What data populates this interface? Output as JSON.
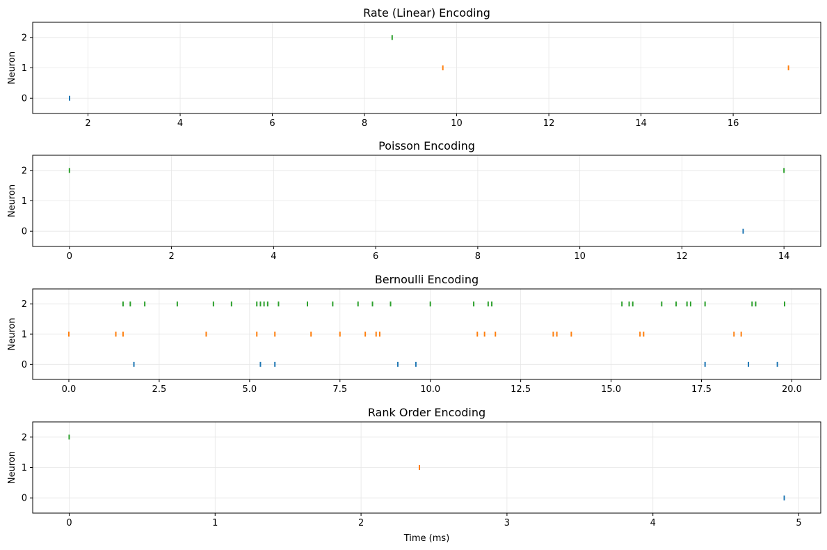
{
  "colors": {
    "neuron_0": "#1f77b4",
    "neuron_1": "#ff7f0e",
    "neuron_2": "#2ca02c",
    "grid": "#e6e6e6",
    "axes": "#000000"
  },
  "chart_data": [
    {
      "type": "scatter",
      "marker": "vertical-tick",
      "title": "Rate (Linear) Encoding",
      "xlabel": "",
      "ylabel": "Neuron",
      "xlim": [
        0.8,
        17.9
      ],
      "ylim": [
        -0.5,
        2.5
      ],
      "xticks": [
        2,
        4,
        6,
        8,
        10,
        12,
        14,
        16
      ],
      "xticklabels": [
        "2",
        "4",
        "6",
        "8",
        "10",
        "12",
        "14",
        "16"
      ],
      "yticks": [
        0,
        1,
        2
      ],
      "yticklabels": [
        "0",
        "1",
        "2"
      ],
      "grid": true,
      "series": [
        {
          "neuron": 0,
          "x": [
            1.6
          ]
        },
        {
          "neuron": 1,
          "x": [
            9.7,
            17.2
          ]
        },
        {
          "neuron": 2,
          "x": [
            8.6
          ]
        }
      ]
    },
    {
      "type": "scatter",
      "marker": "vertical-tick",
      "title": "Poisson Encoding",
      "xlabel": "",
      "ylabel": "Neuron",
      "xlim": [
        -0.72,
        14.72
      ],
      "ylim": [
        -0.5,
        2.5
      ],
      "xticks": [
        0,
        2,
        4,
        6,
        8,
        10,
        12,
        14
      ],
      "xticklabels": [
        "0",
        "2",
        "4",
        "6",
        "8",
        "10",
        "12",
        "14"
      ],
      "yticks": [
        0,
        1,
        2
      ],
      "yticklabels": [
        "0",
        "1",
        "2"
      ],
      "grid": true,
      "series": [
        {
          "neuron": 0,
          "x": [
            13.2
          ]
        },
        {
          "neuron": 1,
          "x": []
        },
        {
          "neuron": 2,
          "x": [
            0.0,
            14.0
          ]
        }
      ]
    },
    {
      "type": "scatter",
      "marker": "vertical-tick",
      "title": "Bernoulli Encoding",
      "xlabel": "",
      "ylabel": "Neuron",
      "xlim": [
        -1.0,
        20.8
      ],
      "ylim": [
        -0.5,
        2.5
      ],
      "xticks": [
        0.0,
        2.5,
        5.0,
        7.5,
        10.0,
        12.5,
        15.0,
        17.5,
        20.0
      ],
      "xticklabels": [
        "0.0",
        "2.5",
        "5.0",
        "7.5",
        "10.0",
        "12.5",
        "15.0",
        "17.5",
        "20.0"
      ],
      "yticks": [
        0,
        1,
        2
      ],
      "yticklabels": [
        "0",
        "1",
        "2"
      ],
      "grid": true,
      "series": [
        {
          "neuron": 0,
          "x": [
            1.8,
            5.3,
            5.7,
            9.1,
            9.6,
            17.6,
            18.8,
            19.6
          ]
        },
        {
          "neuron": 1,
          "x": [
            0.0,
            1.3,
            1.5,
            3.8,
            5.2,
            5.7,
            6.7,
            7.5,
            8.2,
            8.5,
            8.6,
            11.3,
            11.5,
            11.8,
            13.4,
            13.5,
            13.9,
            15.8,
            15.9,
            18.4,
            18.6
          ]
        },
        {
          "neuron": 2,
          "x": [
            1.5,
            1.7,
            2.1,
            3.0,
            4.0,
            4.5,
            5.2,
            5.3,
            5.4,
            5.5,
            5.8,
            6.6,
            7.3,
            8.0,
            8.4,
            8.9,
            10.0,
            11.2,
            11.6,
            11.7,
            15.3,
            15.5,
            15.6,
            16.4,
            16.8,
            17.1,
            17.2,
            17.6,
            18.9,
            19.0,
            19.8
          ]
        }
      ]
    },
    {
      "type": "scatter",
      "marker": "vertical-tick",
      "title": "Rank Order Encoding",
      "xlabel": "Time (ms)",
      "ylabel": "Neuron",
      "xlim": [
        -0.25,
        5.15
      ],
      "ylim": [
        -0.5,
        2.5
      ],
      "xticks": [
        0,
        1,
        2,
        3,
        4,
        5
      ],
      "xticklabels": [
        "0",
        "1",
        "2",
        "3",
        "4",
        "5"
      ],
      "yticks": [
        0,
        1,
        2
      ],
      "yticklabels": [
        "0",
        "1",
        "2"
      ],
      "grid": true,
      "series": [
        {
          "neuron": 0,
          "x": [
            4.9
          ]
        },
        {
          "neuron": 1,
          "x": [
            2.4
          ]
        },
        {
          "neuron": 2,
          "x": [
            0.0
          ]
        }
      ]
    }
  ]
}
